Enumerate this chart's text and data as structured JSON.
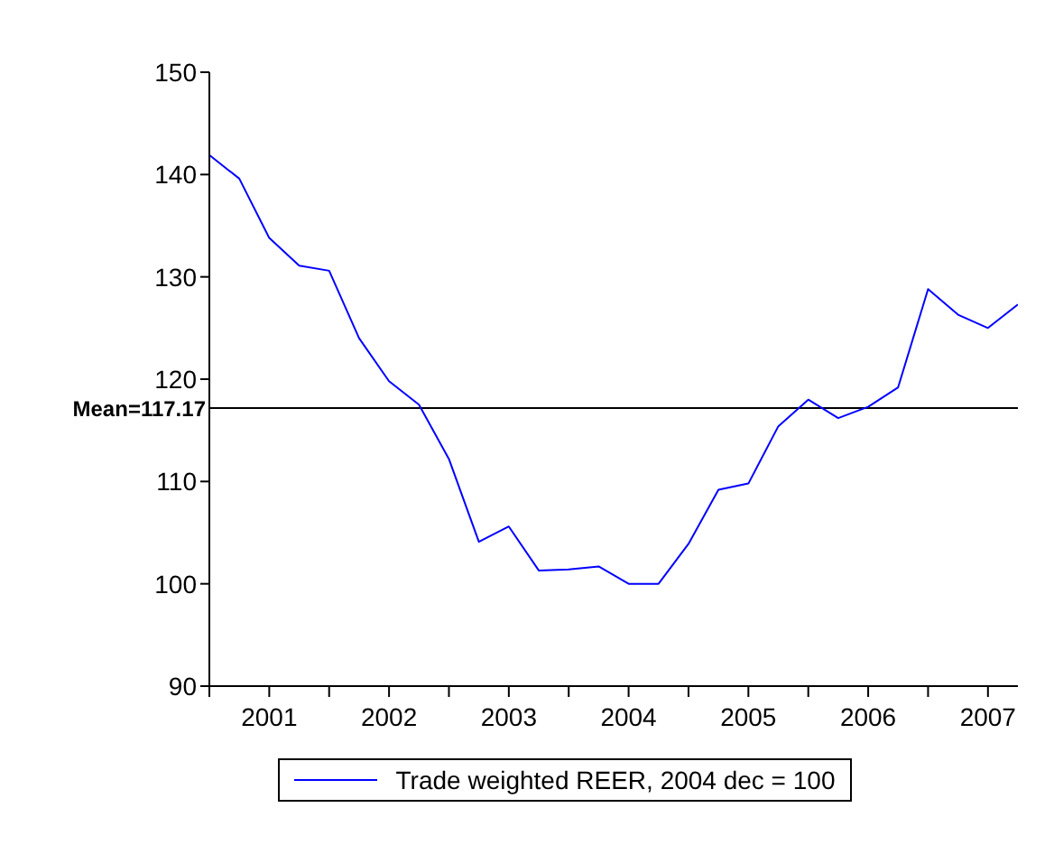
{
  "chart_data": {
    "type": "line",
    "x": [
      2001,
      2001.25,
      2001.5,
      2001.75,
      2002,
      2002.25,
      2002.5,
      2002.75,
      2003,
      2003.25,
      2003.5,
      2003.75,
      2004,
      2004.25,
      2004.5,
      2004.75,
      2005,
      2005.25,
      2005.5,
      2005.75,
      2006,
      2006.25,
      2006.5,
      2006.75,
      2007,
      2007.25,
      2007.5,
      2007.75
    ],
    "series": [
      {
        "name": "Trade weighted REER, 2004 dec = 100",
        "color": "#0000ff",
        "values": [
          141.9,
          139.6,
          133.8,
          131.1,
          130.6,
          124.0,
          119.8,
          117.5,
          112.2,
          104.1,
          105.6,
          101.3,
          101.4,
          101.7,
          100.0,
          100.0,
          103.9,
          109.2,
          109.8,
          115.4,
          118.0,
          116.2,
          117.3,
          119.2,
          128.8,
          126.3,
          125.0,
          127.3
        ]
      }
    ],
    "xlim": [
      2001,
      2007.75
    ],
    "xticks": [
      {
        "value": 2001,
        "label": null
      },
      {
        "value": 2001.5,
        "label": "2001"
      },
      {
        "value": 2002,
        "label": null
      },
      {
        "value": 2002.5,
        "label": "2002"
      },
      {
        "value": 2003,
        "label": null
      },
      {
        "value": 2003.5,
        "label": "2003"
      },
      {
        "value": 2004,
        "label": null
      },
      {
        "value": 2004.5,
        "label": "2004"
      },
      {
        "value": 2005,
        "label": null
      },
      {
        "value": 2005.5,
        "label": "2005"
      },
      {
        "value": 2006,
        "label": null
      },
      {
        "value": 2006.5,
        "label": "2006"
      },
      {
        "value": 2007,
        "label": null
      },
      {
        "value": 2007.5,
        "label": "2007"
      }
    ],
    "ylim": [
      90,
      150
    ],
    "yticks": [
      90,
      100,
      110,
      120,
      130,
      140,
      150
    ],
    "ref_lines": [
      {
        "axis": "y",
        "value": 117.17,
        "label": "Mean=117.17",
        "color": "#000000"
      }
    ],
    "grid": false,
    "legend": "bottom",
    "marker": "none",
    "line_style": "solid"
  }
}
